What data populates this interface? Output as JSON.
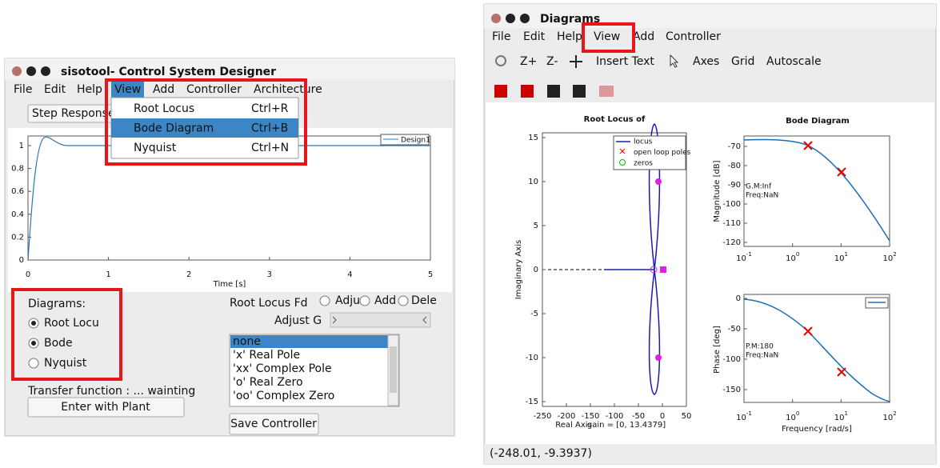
{
  "left_window": {
    "title": "sisotool- Control System Designer",
    "menu": [
      "File",
      "Edit",
      "Help",
      "View",
      "Add",
      "Controller",
      "Architecture"
    ],
    "view_menu": [
      {
        "label": "Root Locus",
        "shortcut": "Ctrl+R"
      },
      {
        "label": "Bode Diagram",
        "shortcut": "Ctrl+B"
      },
      {
        "label": "Nyquist",
        "shortcut": "Ctrl+N"
      }
    ],
    "step_button": "Step Response",
    "plot": {
      "yticks": [
        "1",
        "0.8",
        "0.6",
        "0.4",
        "0.2",
        "0"
      ],
      "xticks": [
        "0",
        "1",
        "2",
        "3",
        "4",
        "5"
      ],
      "xlabel": "Time [s]",
      "legend": "Design1"
    },
    "diagrams": {
      "label": "Diagrams:",
      "options": [
        "Root Locu",
        "Bode",
        "Nyquist"
      ]
    },
    "transfer_function": "Transfer function : ... wainting",
    "plant_button": "Enter with Plant",
    "root_locus_label": "Root Locus Fd",
    "mode_options": [
      "Adju",
      "Add",
      "Dele"
    ],
    "adjust_label": "Adjust G",
    "list": [
      "none",
      "'x' Real Pole",
      "'xx' Complex Pole",
      "'o' Real Zero",
      "'oo' Complex Zero"
    ],
    "save_button": "Save Controller"
  },
  "right_window": {
    "title": "Diagrams",
    "menu": [
      "File",
      "Edit",
      "Help",
      "View",
      "Add",
      "Controller"
    ],
    "toolbar": [
      "Z+",
      "Z-",
      "Insert Text",
      "Axes",
      "Grid",
      "Autoscale"
    ],
    "root_locus": {
      "title": "Root Locus of",
      "yticks": [
        "15",
        "10",
        "5",
        "0",
        "-5",
        "-10",
        "-15"
      ],
      "xticks": [
        "-250",
        "-200",
        "-150",
        "-100",
        "-50",
        "0",
        "50"
      ],
      "xlabel": "Real Axis",
      "gain": "gain = [0, 13.4379]",
      "ylabel": "Imaginary Axis",
      "legend": [
        "locus",
        "open loop poles",
        "zeros"
      ]
    },
    "bode": {
      "title": "Bode Diagram",
      "magnitude": {
        "yticks": [
          "-70",
          "-80",
          "-90",
          "-100",
          "-110",
          "-120"
        ],
        "ylabel": "Magnitude [dB]",
        "notes": [
          "G.M:Inf",
          "Freq:NaN"
        ]
      },
      "phase": {
        "yticks": [
          "0",
          "-50",
          "-100",
          "-150"
        ],
        "ylabel": "Phase [deg]",
        "notes": [
          "P.M:180",
          "Freq:NaN"
        ],
        "xlabel": "Frequency [rad/s]"
      },
      "xticks": [
        {
          "base": "10",
          "exp": "-1"
        },
        {
          "base": "10",
          "exp": "0"
        },
        {
          "base": "10",
          "exp": "1"
        },
        {
          "base": "10",
          "exp": "2"
        }
      ]
    },
    "status": "(-248.01, -9.3937)"
  }
}
